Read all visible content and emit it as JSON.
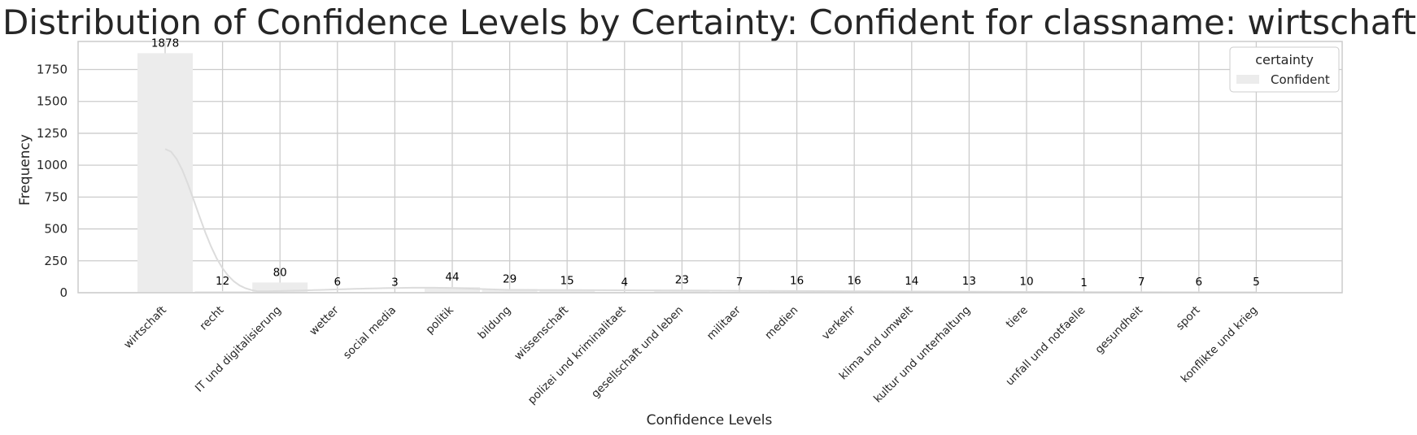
{
  "chart_data": {
    "type": "bar",
    "title": "Distribution of Confidence Levels by Certainty: Confident for classname: wirtschaft",
    "xlabel": "Confidence Levels",
    "ylabel": "Frequency",
    "ylim": [
      0,
      1970
    ],
    "yticks": [
      0,
      250,
      500,
      750,
      1000,
      1250,
      1500,
      1750
    ],
    "grid": true,
    "legend": {
      "title": "certainty",
      "placement": "top-right",
      "entries": [
        "Confident"
      ]
    },
    "categories": [
      "wirtschaft",
      "recht",
      "IT und digitalisierung",
      "wetter",
      "social media",
      "politik",
      "bildung",
      "wissenschaft",
      "polizei und kriminalitaet",
      "gesellschaft und leben",
      "militaer",
      "medien",
      "verkehr",
      "klima und umwelt",
      "kultur und unterhaltung",
      "tiere",
      "unfall und notfaelle",
      "gesundheit",
      "sport",
      "konflikte und krieg"
    ],
    "series": [
      {
        "name": "Confident",
        "color": "#ececec",
        "kde_color": "#dcdcdc",
        "values": [
          1878,
          12,
          80,
          6,
          3,
          44,
          29,
          15,
          4,
          23,
          7,
          16,
          16,
          14,
          13,
          10,
          1,
          7,
          6,
          5
        ]
      }
    ]
  }
}
